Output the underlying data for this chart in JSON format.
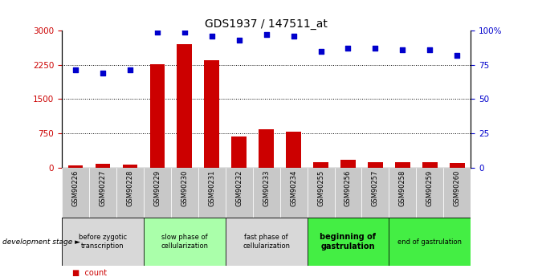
{
  "title": "GDS1937 / 147511_at",
  "samples": [
    "GSM90226",
    "GSM90227",
    "GSM90228",
    "GSM90229",
    "GSM90230",
    "GSM90231",
    "GSM90232",
    "GSM90233",
    "GSM90234",
    "GSM90255",
    "GSM90256",
    "GSM90257",
    "GSM90258",
    "GSM90259",
    "GSM90260"
  ],
  "counts": [
    55,
    80,
    65,
    2260,
    2700,
    2350,
    680,
    840,
    780,
    120,
    175,
    110,
    110,
    115,
    95
  ],
  "percentiles": [
    71,
    69,
    71,
    99,
    99,
    96,
    93,
    97,
    96,
    85,
    87,
    87,
    86,
    86,
    82
  ],
  "ylim_left": [
    0,
    3000
  ],
  "ylim_right": [
    0,
    100
  ],
  "yticks_left": [
    0,
    750,
    1500,
    2250,
    3000
  ],
  "yticks_right": [
    0,
    25,
    50,
    75,
    100
  ],
  "ytick_labels_left": [
    "0",
    "750",
    "1500",
    "2250",
    "3000"
  ],
  "ytick_labels_right": [
    "0",
    "25",
    "50",
    "75",
    "100%"
  ],
  "bar_color": "#cc0000",
  "scatter_color": "#0000cc",
  "stages": [
    {
      "label": "before zygotic\ntranscription",
      "samples_range": [
        0,
        2
      ],
      "color": "#d8d8d8",
      "bold": false
    },
    {
      "label": "slow phase of\ncellularization",
      "samples_range": [
        3,
        5
      ],
      "color": "#aaffaa",
      "bold": false
    },
    {
      "label": "fast phase of\ncellularization",
      "samples_range": [
        6,
        8
      ],
      "color": "#d8d8d8",
      "bold": false
    },
    {
      "label": "beginning of\ngastrulation",
      "samples_range": [
        9,
        11
      ],
      "color": "#44ee44",
      "bold": true
    },
    {
      "label": "end of gastrulation",
      "samples_range": [
        12,
        14
      ],
      "color": "#44ee44",
      "bold": false
    }
  ],
  "tick_bg_color": "#c8c8c8",
  "dev_stage_label": "development stage",
  "background_color": "#ffffff"
}
